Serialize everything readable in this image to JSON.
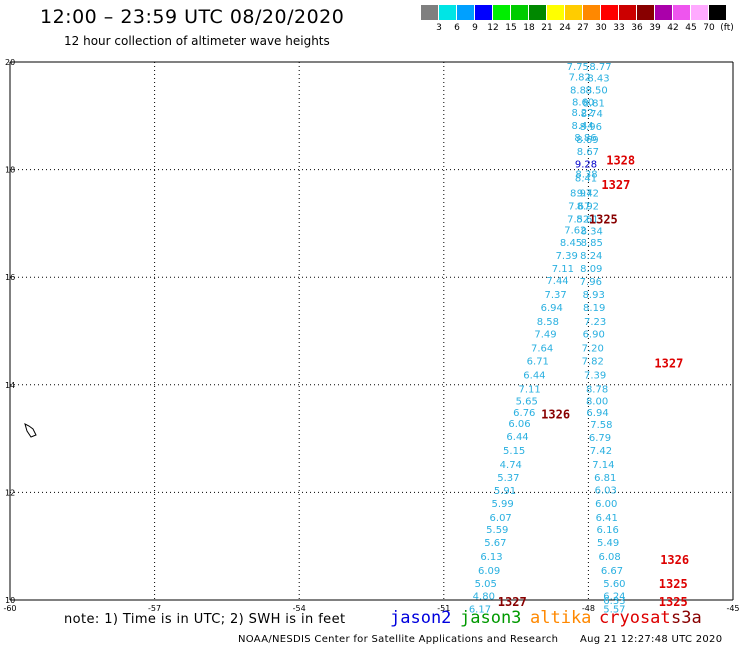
{
  "header": {
    "title": "12:00 – 23:59 UTC 08/20/2020",
    "subtitle": "12 hour collection of altimeter wave heights"
  },
  "color_scale": {
    "labels": [
      "3",
      "6",
      "9",
      "12",
      "15",
      "18",
      "21",
      "24",
      "27",
      "30",
      "33",
      "36",
      "39",
      "42",
      "45",
      "70"
    ],
    "unit": "(ft)",
    "colors": [
      "#7f7f7f",
      "#00e5e5",
      "#00a0ff",
      "#0000ff",
      "#00ee00",
      "#00cc00",
      "#008800",
      "#ffff00",
      "#ffcc00",
      "#ff8800",
      "#ff0000",
      "#cc0000",
      "#880000",
      "#aa00aa",
      "#ee55ee",
      "#ffaaff",
      "#000000"
    ]
  },
  "map": {
    "lon_labels": [
      "-60",
      "-57",
      "-54",
      "-51",
      "-48",
      "-45"
    ],
    "lat_labels": [
      "10",
      "12",
      "14",
      "16",
      "18",
      "20"
    ],
    "lon_range": [
      -60,
      -45
    ],
    "lat_range": [
      10,
      20
    ],
    "left_track": {
      "color": "#2ab0e0",
      "points": [
        {
          "lat": 19.93,
          "lon": -48.22,
          "v": "7.75"
        },
        {
          "lat": 19.73,
          "lon": -48.18,
          "v": "7.82"
        },
        {
          "lat": 19.49,
          "lon": -48.15,
          "v": "8.83"
        },
        {
          "lat": 19.27,
          "lon": -48.11,
          "v": "8.60"
        },
        {
          "lat": 19.07,
          "lon": -48.12,
          "v": "8.22"
        },
        {
          "lat": 18.83,
          "lon": -48.12,
          "v": "8.44"
        },
        {
          "lat": 18.61,
          "lon": -48.06,
          "v": "8.86"
        },
        {
          "lat": 18.35,
          "lon": -48.01,
          "v": "8.67"
        },
        {
          "lat": 17.85,
          "lon": -48.05,
          "v": "8.41"
        },
        {
          "lat": 17.57,
          "lon": -48.15,
          "v": "8.97"
        },
        {
          "lat": 17.33,
          "lon": -48.19,
          "v": "7.67"
        },
        {
          "lat": 17.09,
          "lon": -48.21,
          "v": "7.52"
        },
        {
          "lat": 16.89,
          "lon": -48.27,
          "v": "7.62"
        },
        {
          "lat": 16.65,
          "lon": -48.36,
          "v": "8.45"
        },
        {
          "lat": 16.41,
          "lon": -48.45,
          "v": "7.39"
        },
        {
          "lat": 16.17,
          "lon": -48.53,
          "v": "7.11"
        },
        {
          "lat": 15.95,
          "lon": -48.64,
          "v": "7.44"
        },
        {
          "lat": 15.69,
          "lon": -48.68,
          "v": "7.37"
        },
        {
          "lat": 15.45,
          "lon": -48.76,
          "v": "6.94"
        },
        {
          "lat": 15.19,
          "lon": -48.84,
          "v": "8.58"
        },
        {
          "lat": 14.95,
          "lon": -48.89,
          "v": "7.49"
        },
        {
          "lat": 14.69,
          "lon": -48.96,
          "v": "7.64"
        },
        {
          "lat": 14.45,
          "lon": -49.05,
          "v": "6.71"
        },
        {
          "lat": 14.19,
          "lon": -49.12,
          "v": "6.44"
        },
        {
          "lat": 13.93,
          "lon": -49.22,
          "v": "7.11"
        },
        {
          "lat": 13.71,
          "lon": -49.28,
          "v": "5.65"
        },
        {
          "lat": 13.49,
          "lon": -49.33,
          "v": "6.76"
        },
        {
          "lat": 13.29,
          "lon": -49.43,
          "v": "6.06"
        },
        {
          "lat": 13.05,
          "lon": -49.47,
          "v": "6.44"
        },
        {
          "lat": 12.79,
          "lon": -49.54,
          "v": "5.15"
        },
        {
          "lat": 12.53,
          "lon": -49.61,
          "v": "4.74"
        },
        {
          "lat": 12.29,
          "lon": -49.66,
          "v": "5.37"
        },
        {
          "lat": 12.04,
          "lon": -49.73,
          "v": "5.91"
        },
        {
          "lat": 11.8,
          "lon": -49.78,
          "v": "5.99"
        },
        {
          "lat": 11.54,
          "lon": -49.82,
          "v": "6.07"
        },
        {
          "lat": 11.32,
          "lon": -49.89,
          "v": "5.59"
        },
        {
          "lat": 11.08,
          "lon": -49.93,
          "v": "5.67"
        },
        {
          "lat": 10.82,
          "lon": -50.01,
          "v": "6.13"
        },
        {
          "lat": 10.56,
          "lon": -50.06,
          "v": "6.09"
        },
        {
          "lat": 10.32,
          "lon": -50.13,
          "v": "5.05"
        },
        {
          "lat": 10.08,
          "lon": -50.17,
          "v": "4.80"
        },
        {
          "lat": 9.84,
          "lon": -50.25,
          "v": "6.17"
        }
      ]
    },
    "right_track": {
      "color": "#2ab0e0",
      "points": [
        {
          "lat": 19.93,
          "lon": -47.75,
          "v": "8.77"
        },
        {
          "lat": 19.71,
          "lon": -47.79,
          "v": "8.43"
        },
        {
          "lat": 19.49,
          "lon": -47.83,
          "v": "8.50"
        },
        {
          "lat": 19.25,
          "lon": -47.89,
          "v": "8.81"
        },
        {
          "lat": 19.05,
          "lon": -47.93,
          "v": "8.74"
        },
        {
          "lat": 18.81,
          "lon": -47.95,
          "v": "8.96"
        },
        {
          "lat": 18.57,
          "lon": -48.02,
          "v": "8.69"
        },
        {
          "lat": 18.11,
          "lon": -48.05,
          "v": "9.28",
          "color": "#0000cc"
        },
        {
          "lat": 17.93,
          "lon": -48.04,
          "v": "8.38"
        },
        {
          "lat": 17.57,
          "lon": -48.01,
          "v": "9.42"
        },
        {
          "lat": 17.33,
          "lon": -48.01,
          "v": "8.92"
        },
        {
          "lat": 17.09,
          "lon": -48.02,
          "v": "8.61"
        },
        {
          "lat": 16.87,
          "lon": -47.93,
          "v": "8.34"
        },
        {
          "lat": 16.65,
          "lon": -47.93,
          "v": "8.85"
        },
        {
          "lat": 16.41,
          "lon": -47.94,
          "v": "8.24"
        },
        {
          "lat": 16.17,
          "lon": -47.94,
          "v": "8.09"
        },
        {
          "lat": 15.93,
          "lon": -47.95,
          "v": "7.96"
        },
        {
          "lat": 15.69,
          "lon": -47.89,
          "v": "8.93"
        },
        {
          "lat": 15.45,
          "lon": -47.88,
          "v": "8.19"
        },
        {
          "lat": 15.19,
          "lon": -47.86,
          "v": "7.23"
        },
        {
          "lat": 14.95,
          "lon": -47.89,
          "v": "6.90"
        },
        {
          "lat": 14.69,
          "lon": -47.91,
          "v": "7.20"
        },
        {
          "lat": 14.45,
          "lon": -47.91,
          "v": "7.82"
        },
        {
          "lat": 14.19,
          "lon": -47.86,
          "v": "7.39"
        },
        {
          "lat": 13.93,
          "lon": -47.82,
          "v": "8.78"
        },
        {
          "lat": 13.71,
          "lon": -47.82,
          "v": "8.00"
        },
        {
          "lat": 13.49,
          "lon": -47.81,
          "v": "6.94"
        },
        {
          "lat": 13.27,
          "lon": -47.73,
          "v": "7.58"
        },
        {
          "lat": 13.03,
          "lon": -47.76,
          "v": "6.79"
        },
        {
          "lat": 12.79,
          "lon": -47.74,
          "v": "7.42"
        },
        {
          "lat": 12.53,
          "lon": -47.69,
          "v": "7.14"
        },
        {
          "lat": 12.29,
          "lon": -47.65,
          "v": "6.81"
        },
        {
          "lat": 12.05,
          "lon": -47.64,
          "v": "6.03"
        },
        {
          "lat": 11.8,
          "lon": -47.63,
          "v": "6.00"
        },
        {
          "lat": 11.54,
          "lon": -47.62,
          "v": "6.41"
        },
        {
          "lat": 11.32,
          "lon": -47.6,
          "v": "6.16"
        },
        {
          "lat": 11.08,
          "lon": -47.59,
          "v": "5.49"
        },
        {
          "lat": 10.82,
          "lon": -47.56,
          "v": "6.08"
        },
        {
          "lat": 10.56,
          "lon": -47.51,
          "v": "6.67"
        },
        {
          "lat": 10.32,
          "lon": -47.46,
          "v": "5.60"
        },
        {
          "lat": 10.08,
          "lon": -47.46,
          "v": "6.24"
        },
        {
          "lat": 10.0,
          "lon": -47.46,
          "v": "6.33"
        },
        {
          "lat": 9.84,
          "lon": -47.46,
          "v": "5.57"
        }
      ]
    },
    "orbit_labels": [
      {
        "text": "1328",
        "lat": 18.19,
        "lon": -47.63,
        "color": "#dd0000"
      },
      {
        "text": "1327",
        "lat": 17.73,
        "lon": -47.73,
        "color": "#dd0000"
      },
      {
        "text": "1325",
        "lat": 17.09,
        "lon": -47.99,
        "color": "#880000"
      },
      {
        "text": "1327",
        "lat": 14.41,
        "lon": -46.63,
        "color": "#dd0000"
      },
      {
        "text": "1326",
        "lat": 13.47,
        "lon": -48.98,
        "color": "#880000"
      },
      {
        "text": "1326",
        "lat": 10.76,
        "lon": -46.51,
        "color": "#dd0000"
      },
      {
        "text": "1325",
        "lat": 10.32,
        "lon": -46.54,
        "color": "#dd0000"
      },
      {
        "text": "1325",
        "lat": 9.98,
        "lon": -46.54,
        "color": "#dd0000"
      },
      {
        "text": "1327",
        "lat": 9.98,
        "lon": -49.88,
        "color": "#880000"
      }
    ]
  },
  "footer": {
    "note": "note: 1) Time is in UTC; 2) SWH is in feet",
    "satellites": [
      {
        "name": "jason2",
        "color": "#0000dd"
      },
      {
        "name": "jason3",
        "color": "#009900"
      },
      {
        "name": "altika",
        "color": "#ff8800"
      },
      {
        "name": "cryosat",
        "color": "#dd0000"
      },
      {
        "name": "s3a",
        "color": "#880000"
      }
    ],
    "credit": "NOAA/NESDIS Center for Satellite Applications and Research",
    "timestamp": "Aug 21 12:27:48 UTC 2020"
  }
}
